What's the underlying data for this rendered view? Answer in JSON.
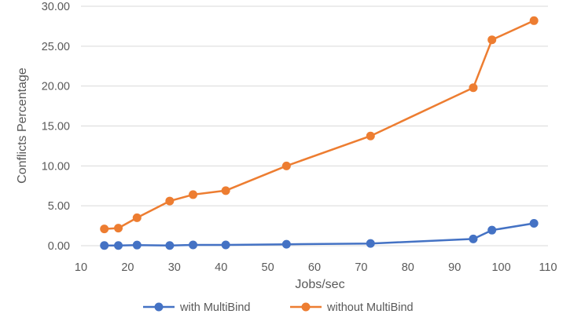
{
  "chart_data": {
    "type": "line",
    "title": "",
    "xlabel": "Jobs/sec",
    "ylabel": "Conflicts Percentage",
    "xlim": [
      10,
      110
    ],
    "ylim": [
      0,
      30
    ],
    "x_ticks": [
      "10",
      "20",
      "30",
      "40",
      "50",
      "60",
      "70",
      "80",
      "90",
      "100",
      "110"
    ],
    "y_ticks": [
      "0.00",
      "5.00",
      "10.00",
      "15.00",
      "20.00",
      "25.00",
      "30.00"
    ],
    "grid": true,
    "legend_position": "bottom",
    "series": [
      {
        "name": "with MultiBind",
        "color": "#4472C4",
        "x": [
          15,
          18,
          22,
          29,
          34,
          41,
          54,
          72,
          94,
          98,
          107
        ],
        "y": [
          0.02,
          0.02,
          0.08,
          0.02,
          0.1,
          0.1,
          0.18,
          0.28,
          0.85,
          1.95,
          2.8
        ]
      },
      {
        "name": "without MultiBind",
        "color": "#ED7D31",
        "x": [
          15,
          18,
          22,
          29,
          34,
          41,
          54,
          72,
          94,
          98,
          107
        ],
        "y": [
          2.1,
          2.2,
          3.5,
          5.6,
          6.4,
          6.9,
          10.0,
          13.75,
          19.8,
          25.8,
          28.2
        ]
      }
    ]
  }
}
